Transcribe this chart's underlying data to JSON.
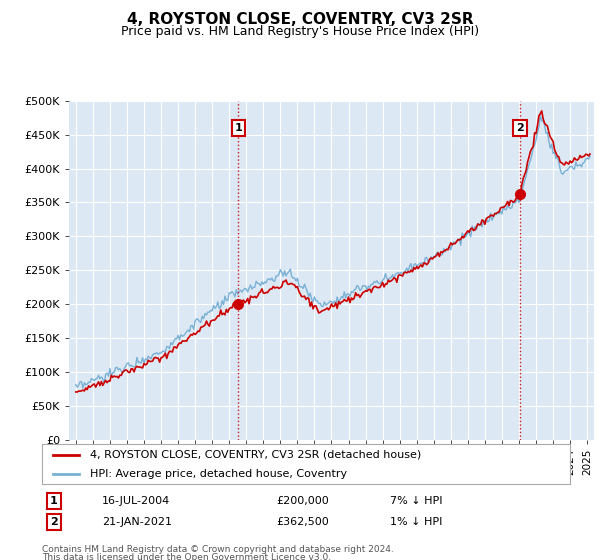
{
  "title": "4, ROYSTON CLOSE, COVENTRY, CV3 2SR",
  "subtitle": "Price paid vs. HM Land Registry's House Price Index (HPI)",
  "ylim": [
    0,
    500000
  ],
  "yticks": [
    0,
    50000,
    100000,
    150000,
    200000,
    250000,
    300000,
    350000,
    400000,
    450000,
    500000
  ],
  "ytick_labels": [
    "£0",
    "£50K",
    "£100K",
    "£150K",
    "£200K",
    "£250K",
    "£300K",
    "£350K",
    "£400K",
    "£450K",
    "£500K"
  ],
  "fig_bg_color": "#ffffff",
  "plot_bg_color": "#dce9f5",
  "grid_color": "#ffffff",
  "hpi_color": "#7ab0d4",
  "price_color": "#cc0000",
  "marker_color": "#cc0000",
  "sale1_price": 200000,
  "sale1_label": "16-JUL-2004",
  "sale1_pct": "7% ↓ HPI",
  "sale1_year": 2004.54,
  "sale2_price": 362500,
  "sale2_label": "21-JAN-2021",
  "sale2_pct": "1% ↓ HPI",
  "sale2_year": 2021.05,
  "legend_entry1": "4, ROYSTON CLOSE, COVENTRY, CV3 2SR (detached house)",
  "legend_entry2": "HPI: Average price, detached house, Coventry",
  "footnote1": "Contains HM Land Registry data © Crown copyright and database right 2024.",
  "footnote2": "This data is licensed under the Open Government Licence v3.0."
}
